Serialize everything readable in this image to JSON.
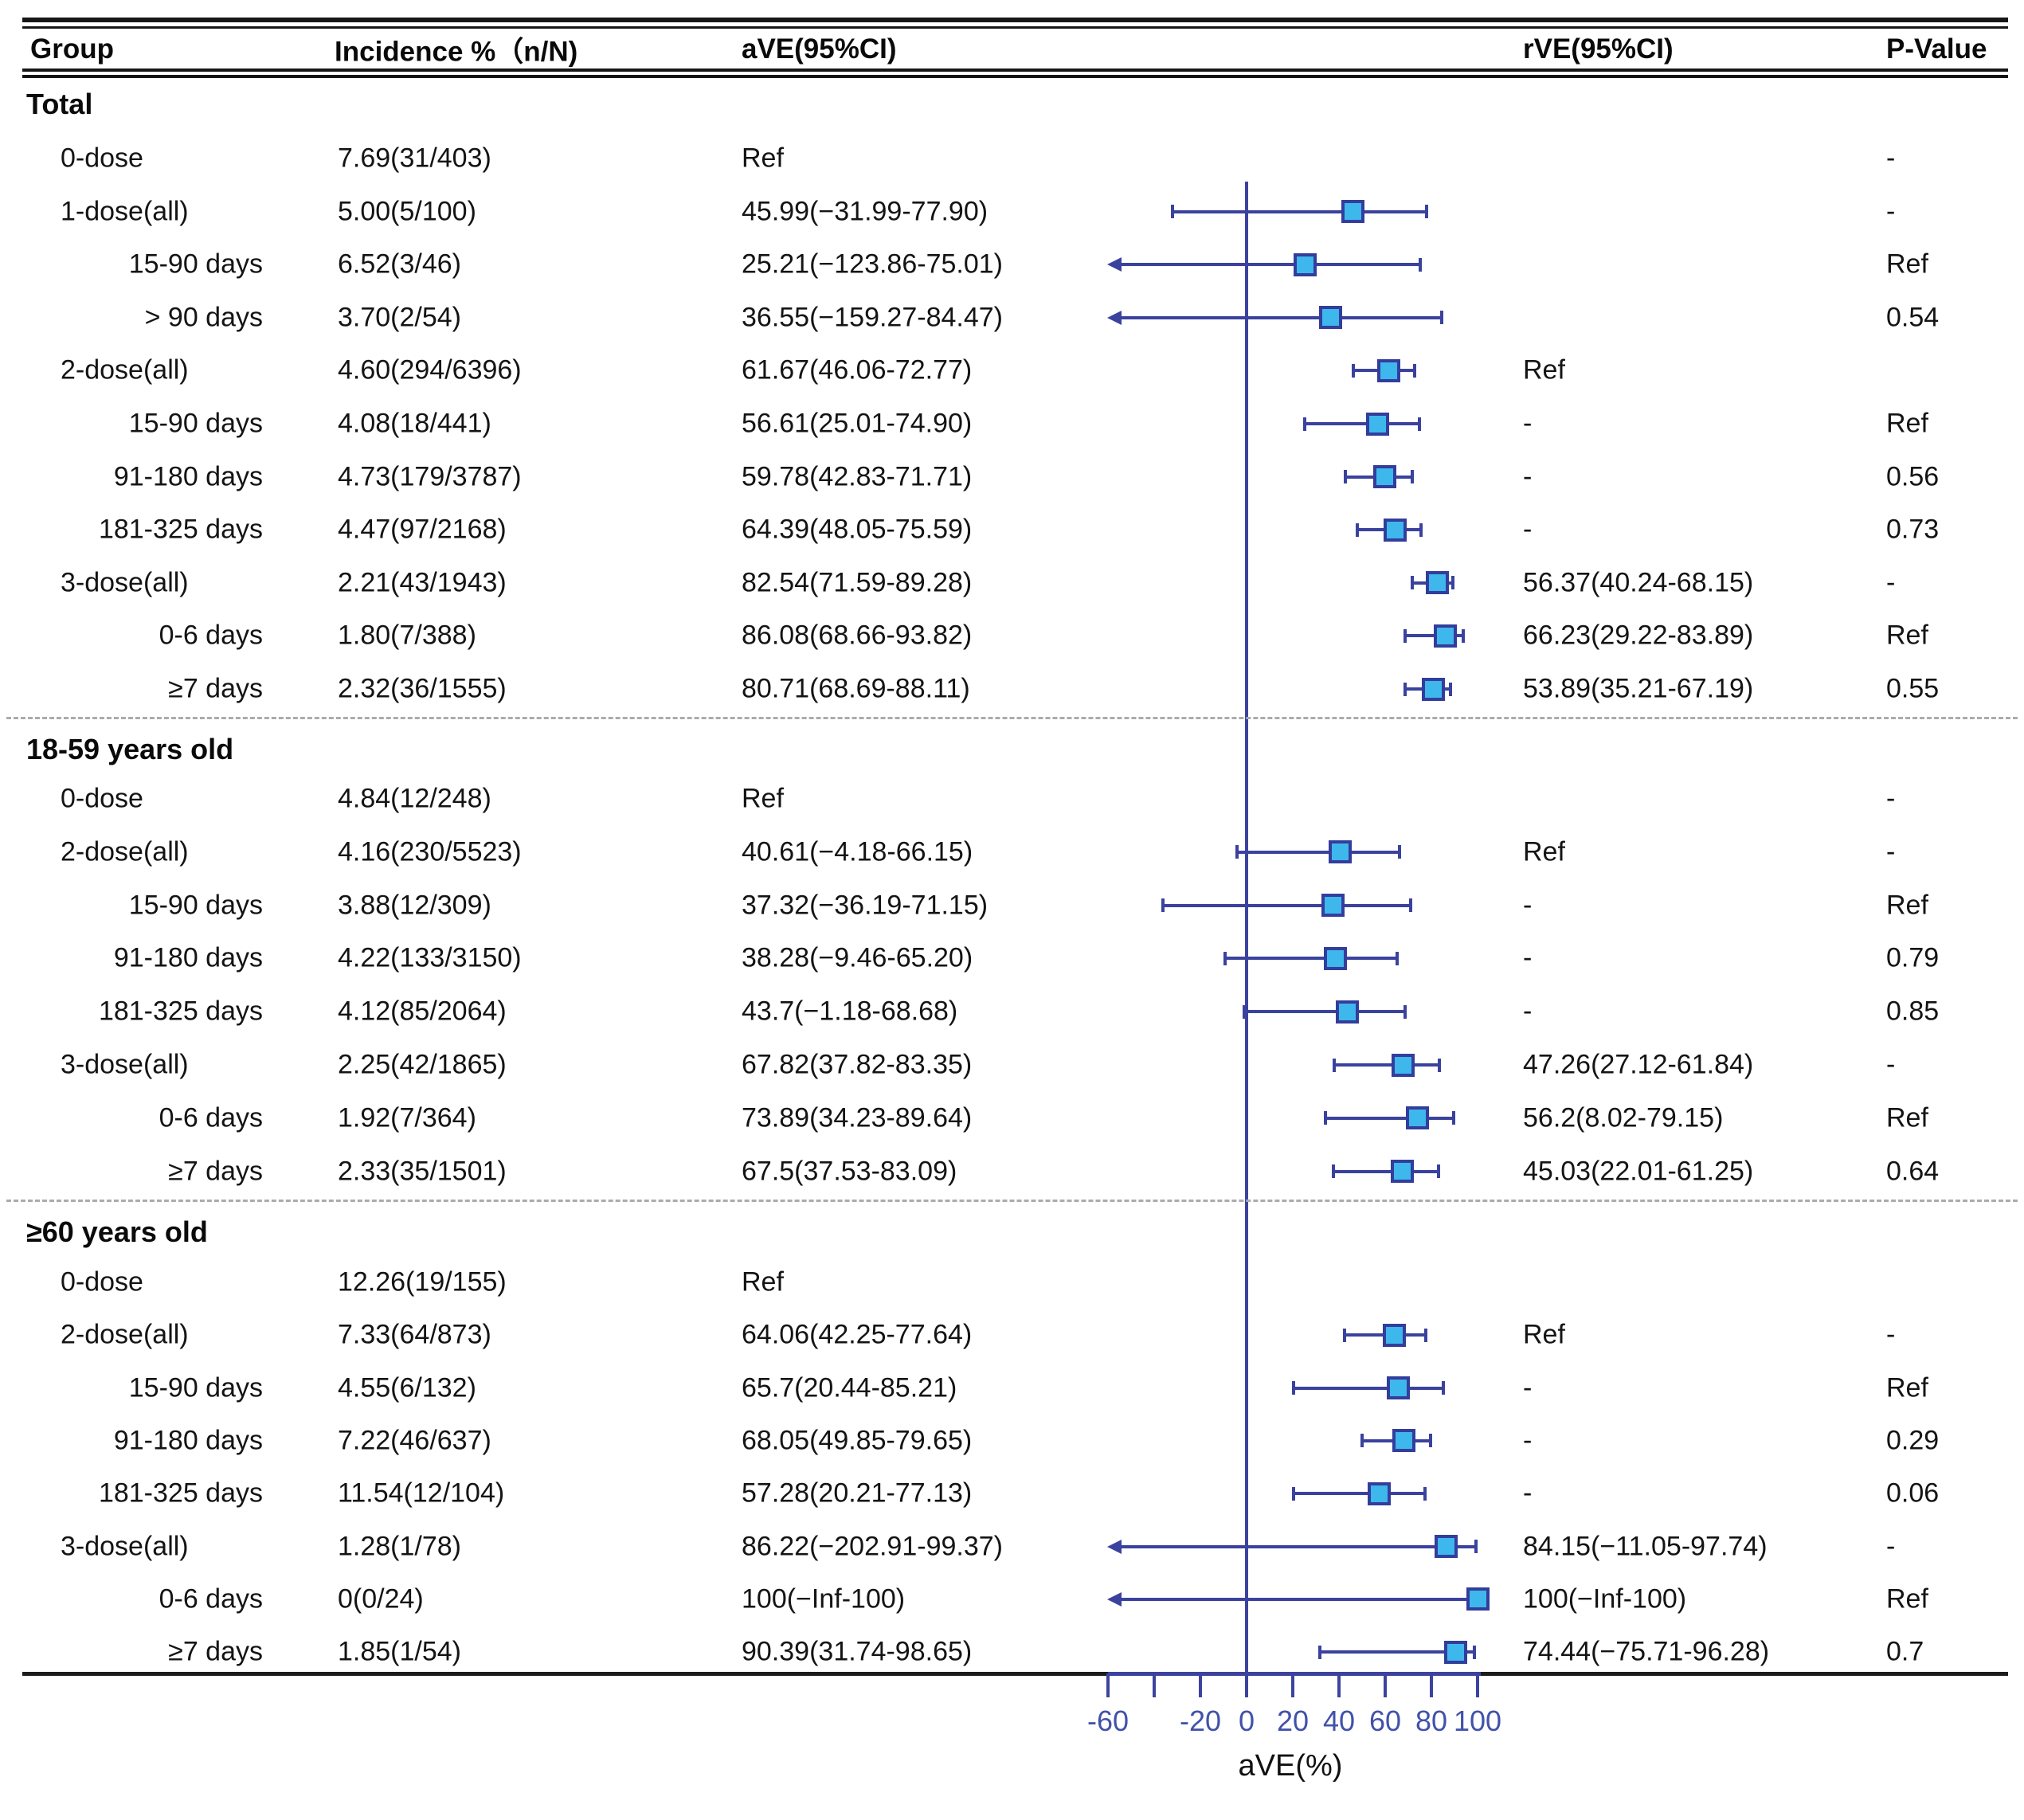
{
  "chart_data": {
    "type": "forest",
    "xlabel": "aVE(%)",
    "columns": {
      "group": "Group",
      "incidence": "Incidence %（n/N)",
      "ave": "aVE(95%CI)",
      "rve": "rVE(95%CI)",
      "p": "P-Value"
    },
    "axis": {
      "ticks": [
        {
          "v": -60,
          "label": "-60"
        },
        {
          "v": -40,
          "label": ""
        },
        {
          "v": -20,
          "label": "-20"
        },
        {
          "v": 0,
          "label": "0"
        },
        {
          "v": 20,
          "label": "20"
        },
        {
          "v": 40,
          "label": "40"
        },
        {
          "v": 60,
          "label": "60"
        },
        {
          "v": 80,
          "label": "80"
        },
        {
          "v": 100,
          "label": "100"
        }
      ],
      "range_shown": [
        -60,
        100
      ]
    },
    "colors": {
      "marker_fill": "#3EB7EC",
      "marker_border": "#333D9C",
      "line": "#3A429E",
      "tick_label": "#4152A8"
    },
    "sections": [
      {
        "label": "Total",
        "rows": [
          {
            "group": "0-dose",
            "indent": 1,
            "incidence": "7.69(31/403)",
            "ave": "Ref",
            "rve": "",
            "p": "-",
            "est": null
          },
          {
            "group": "1-dose(all)",
            "indent": 1,
            "incidence": "5.00(5/100)",
            "ave": "45.99(−31.99-77.90)",
            "rve": "",
            "p": "-",
            "est": 45.99,
            "lo": -31.99,
            "hi": 77.9
          },
          {
            "group": "15-90 days",
            "indent": 2,
            "incidence": "6.52(3/46)",
            "ave": "25.21(−123.86-75.01)",
            "rve": "",
            "p": "Ref",
            "est": 25.21,
            "lo": -123.86,
            "hi": 75.01
          },
          {
            "group": "> 90 days",
            "indent": 2,
            "incidence": "3.70(2/54)",
            "ave": "36.55(−159.27-84.47)",
            "rve": "",
            "p": "0.54",
            "est": 36.55,
            "lo": -159.27,
            "hi": 84.47
          },
          {
            "group": "2-dose(all)",
            "indent": 1,
            "incidence": "4.60(294/6396)",
            "ave": "61.67(46.06-72.77)",
            "rve": "Ref",
            "p": "",
            "est": 61.67,
            "lo": 46.06,
            "hi": 72.77
          },
          {
            "group": "15-90 days",
            "indent": 2,
            "incidence": "4.08(18/441)",
            "ave": "56.61(25.01-74.90)",
            "rve": "-",
            "p": "Ref",
            "est": 56.61,
            "lo": 25.01,
            "hi": 74.9
          },
          {
            "group": "91-180 days",
            "indent": 2,
            "incidence": "4.73(179/3787)",
            "ave": "59.78(42.83-71.71)",
            "rve": "-",
            "p": "0.56",
            "est": 59.78,
            "lo": 42.83,
            "hi": 71.71
          },
          {
            "group": "181-325 days",
            "indent": 2,
            "incidence": "4.47(97/2168)",
            "ave": "64.39(48.05-75.59)",
            "rve": "-",
            "p": "0.73",
            "est": 64.39,
            "lo": 48.05,
            "hi": 75.59
          },
          {
            "group": "3-dose(all)",
            "indent": 1,
            "incidence": "2.21(43/1943)",
            "ave": "82.54(71.59-89.28)",
            "rve": "56.37(40.24-68.15)",
            "p": "-",
            "est": 82.54,
            "lo": 71.59,
            "hi": 89.28
          },
          {
            "group": "0-6 days",
            "indent": 2,
            "incidence": "1.80(7/388)",
            "ave": "86.08(68.66-93.82)",
            "rve": "66.23(29.22-83.89)",
            "p": "Ref",
            "est": 86.08,
            "lo": 68.66,
            "hi": 93.82
          },
          {
            "group": "≥7 days",
            "indent": 2,
            "incidence": "2.32(36/1555)",
            "ave": "80.71(68.69-88.11)",
            "rve": "53.89(35.21-67.19)",
            "p": "0.55",
            "est": 80.71,
            "lo": 68.69,
            "hi": 88.11
          }
        ]
      },
      {
        "label": "18-59 years old",
        "rows": [
          {
            "group": "0-dose",
            "indent": 1,
            "incidence": "4.84(12/248)",
            "ave": "Ref",
            "rve": "",
            "p": "-",
            "est": null
          },
          {
            "group": "2-dose(all)",
            "indent": 1,
            "incidence": "4.16(230/5523)",
            "ave": "40.61(−4.18-66.15)",
            "rve": "Ref",
            "p": "-",
            "est": 40.61,
            "lo": -4.18,
            "hi": 66.15
          },
          {
            "group": "15-90 days",
            "indent": 2,
            "incidence": "3.88(12/309)",
            "ave": "37.32(−36.19-71.15)",
            "rve": "-",
            "p": "Ref",
            "est": 37.32,
            "lo": -36.19,
            "hi": 71.15
          },
          {
            "group": "91-180 days",
            "indent": 2,
            "incidence": "4.22(133/3150)",
            "ave": "38.28(−9.46-65.20)",
            "rve": "-",
            "p": "0.79",
            "est": 38.28,
            "lo": -9.46,
            "hi": 65.2
          },
          {
            "group": "181-325 days",
            "indent": 2,
            "incidence": "4.12(85/2064)",
            "ave": "43.7(−1.18-68.68)",
            "rve": "-",
            "p": "0.85",
            "est": 43.7,
            "lo": -1.18,
            "hi": 68.68
          },
          {
            "group": "3-dose(all)",
            "indent": 1,
            "incidence": "2.25(42/1865)",
            "ave": "67.82(37.82-83.35)",
            "rve": "47.26(27.12-61.84)",
            "p": "-",
            "est": 67.82,
            "lo": 37.82,
            "hi": 83.35
          },
          {
            "group": "0-6 days",
            "indent": 2,
            "incidence": "1.92(7/364)",
            "ave": "73.89(34.23-89.64)",
            "rve": "56.2(8.02-79.15)",
            "p": "Ref",
            "est": 73.89,
            "lo": 34.23,
            "hi": 89.64
          },
          {
            "group": "≥7 days",
            "indent": 2,
            "incidence": "2.33(35/1501)",
            "ave": "67.5(37.53-83.09)",
            "rve": "45.03(22.01-61.25)",
            "p": "0.64",
            "est": 67.5,
            "lo": 37.53,
            "hi": 83.09
          }
        ]
      },
      {
        "label": "≥60 years old",
        "rows": [
          {
            "group": "0-dose",
            "indent": 1,
            "incidence": "12.26(19/155)",
            "ave": "Ref",
            "rve": "",
            "p": "",
            "est": null
          },
          {
            "group": "2-dose(all)",
            "indent": 1,
            "incidence": "7.33(64/873)",
            "ave": "64.06(42.25-77.64)",
            "rve": "Ref",
            "p": "-",
            "est": 64.06,
            "lo": 42.25,
            "hi": 77.64
          },
          {
            "group": "15-90 days",
            "indent": 2,
            "incidence": "4.55(6/132)",
            "ave": "65.7(20.44-85.21)",
            "rve": "-",
            "p": "Ref",
            "est": 65.7,
            "lo": 20.44,
            "hi": 85.21
          },
          {
            "group": "91-180 days",
            "indent": 2,
            "incidence": "7.22(46/637)",
            "ave": "68.05(49.85-79.65)",
            "rve": "-",
            "p": "0.29",
            "est": 68.05,
            "lo": 49.85,
            "hi": 79.65
          },
          {
            "group": "181-325 days",
            "indent": 2,
            "incidence": "11.54(12/104)",
            "ave": "57.28(20.21-77.13)",
            "rve": "-",
            "p": "0.06",
            "est": 57.28,
            "lo": 20.21,
            "hi": 77.13
          },
          {
            "group": "3-dose(all)",
            "indent": 1,
            "incidence": "1.28(1/78)",
            "ave": "86.22(−202.91-99.37)",
            "rve": "84.15(−11.05-97.74)",
            "p": "-",
            "est": 86.22,
            "lo": -202.91,
            "hi": 99.37
          },
          {
            "group": "0-6 days",
            "indent": 2,
            "incidence": "0(0/24)",
            "ave": "100(−Inf-100)",
            "rve": "100(−Inf-100)",
            "p": "Ref",
            "est": 100,
            "lo": -100000,
            "hi": 100
          },
          {
            "group": "≥7 days",
            "indent": 2,
            "incidence": "1.85(1/54)",
            "ave": "90.39(31.74-98.65)",
            "rve": "74.44(−75.71-96.28)",
            "p": "0.7",
            "est": 90.39,
            "lo": 31.74,
            "hi": 98.65
          }
        ]
      }
    ]
  }
}
